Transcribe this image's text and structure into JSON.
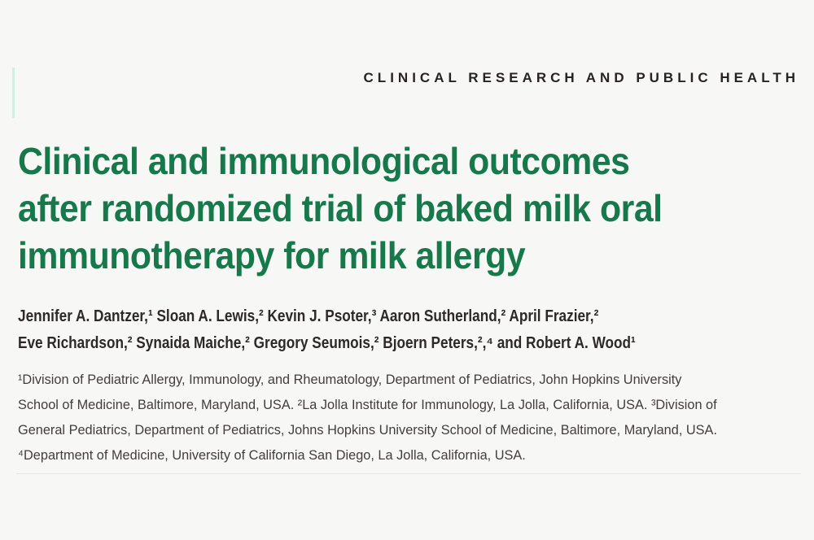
{
  "theme": {
    "background": "#f7f7f5",
    "title_green": "#17794b",
    "kicker_color": "#262322",
    "author_text_color": "#2d292a",
    "affiliation_text_color": "#413e3e",
    "margin_accent_color": "#cdf0e0",
    "divider_color": "#e8e6e4"
  },
  "kicker": {
    "label": "CLINICAL RESEARCH AND PUBLIC HEALTH"
  },
  "article": {
    "title_lines": [
      "Clinical and immunological outcomes",
      "after randomized trial of baked milk oral",
      "immunotherapy for milk allergy"
    ],
    "author_lines": [
      "Jennifer A. Dantzer,¹ Sloan A. Lewis,² Kevin J. Psoter,³ Aaron Sutherland,² April Frazier,²",
      "Eve Richardson,² Synaida Maiche,² Gregory Seumois,² Bjoern Peters,²,⁴ and Robert A. Wood¹"
    ],
    "affiliation_lines": [
      "¹Division of Pediatric Allergy, Immunology, and Rheumatology, Department of Pediatrics, John Hopkins University",
      "School of Medicine, Baltimore, Maryland, USA. ²La Jolla Institute for Immunology, La Jolla, California, USA. ³Division of",
      "General Pediatrics, Department of Pediatrics, Johns Hopkins University School of Medicine, Baltimore, Maryland, USA.",
      "⁴Department of Medicine, University of California San Diego, La Jolla, California, USA."
    ]
  }
}
